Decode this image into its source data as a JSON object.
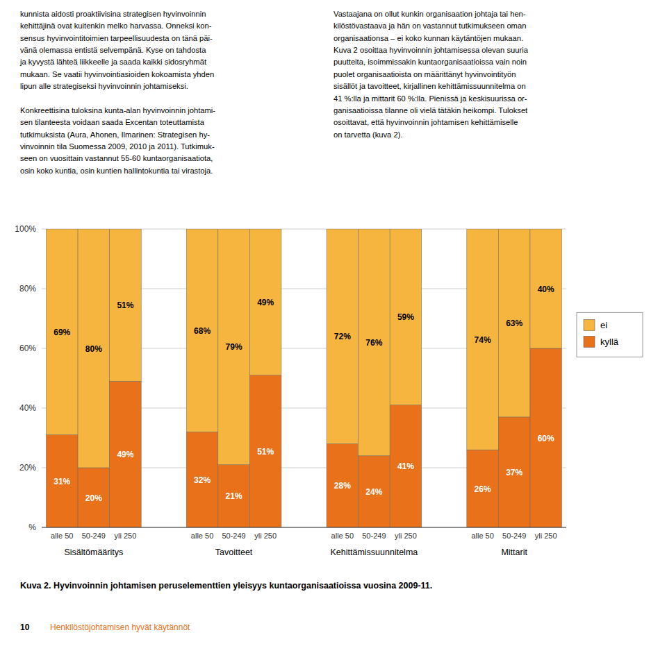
{
  "chart_data": {
    "type": "bar",
    "stacked": true,
    "data_labels": true,
    "grid": true,
    "legend": "right",
    "categories": [
      "alle 50",
      "50-249",
      "yli 250",
      "alle 50",
      "50-249",
      "yli 250",
      "alle 50",
      "50-249",
      "yli 250",
      "alle 50",
      "50-249",
      "yli 250"
    ],
    "groups": [
      "Sisältömääritys",
      "Tavoitteet",
      "Kehittämissuunnitelma",
      "Mittarit"
    ],
    "series": [
      {
        "name": "kyllä",
        "color": "#e8711a",
        "values": [
          31,
          20,
          49,
          32,
          21,
          51,
          28,
          24,
          41,
          26,
          37,
          60
        ],
        "value_labels": [
          "31%",
          "20%",
          "49%",
          "32%",
          "21%",
          "51%",
          "28%",
          "24%",
          "41%",
          "26%",
          "37%",
          "60%"
        ]
      },
      {
        "name": "ei",
        "color": "#f5b53f",
        "values": [
          69,
          80,
          51,
          68,
          79,
          49,
          72,
          76,
          59,
          74,
          63,
          40
        ],
        "value_labels": [
          "69%",
          "80%",
          "51%",
          "68%",
          "79%",
          "49%",
          "72%",
          "76%",
          "59%",
          "74%",
          "63%",
          "40%"
        ]
      }
    ],
    "ylim": [
      0,
      100
    ],
    "yticks": [
      {
        "value": 0,
        "label": "%"
      },
      {
        "value": 20,
        "label": "20%"
      },
      {
        "value": 40,
        "label": "40%"
      },
      {
        "value": 60,
        "label": "60%"
      },
      {
        "value": 80,
        "label": "80%"
      },
      {
        "value": 100,
        "label": "100%"
      }
    ]
  },
  "text_columns": [
    "kunnista aidosti proaktiivisina strategisen hyvinvoinnin\nkehittäjinä ovat kuitenkin melko harvassa. Onneksi kon-\nsensus hyvinvointitoimien tarpeellisuudesta on tänä päi-\nvänä olemassa entistä selvempänä. Kyse on tahdosta\nja kyvystä lähteä liikkeelle ja saada kaikki sidosryhmät\nmukaan. Se vaatii hyvinvointiasioiden kokoamista yhden\nlipun alle strategiseksi hyvinvoinnin johtamiseksi.\n\nKonkreettisina tuloksina kunta-alan hyvinvoinnin johtami-\nsen tilanteesta voidaan saada Excentan toteuttamista\ntutkimuksista (Aura, Ahonen, Ilmarinen: Strategisen hy-\nvinvoinnin tila Suomessa 2009, 2010 ja 2011). Tutkimuk-\nseen on vuosittain vastannut 55-60 kuntaorganisaatiota,\nosin koko kuntia, osin kuntien hallintokuntia tai virastoja.",
    "Vastaajana on ollut kunkin organisaation johtaja tai hen-\nkilöstövastaava ja hän on vastannut tutkimukseen oman\norganisaationsa – ei koko kunnan käytäntöjen mukaan.\nKuva 2 osoittaa hyvinvoinnin johtamisessa olevan suuria\npuutteita, isoimmissakin kuntaorganisaatioissa vain noin\npuolet organisaatioista on määrittänyt hyvinvointityön\nsisällöt ja tavoitteet, kirjallinen kehittämissuunnitelma on\n41 %:lla ja mittarit 60 %:lla. Pienissä ja keskisuurissa or-\nganisaatioissa tilanne oli vielä tätäkin heikompi. Tulokset\nosoittavat, että hyvinvoinnin johtamisen kehittämiselle\non tarvetta (kuva 2)."
  ],
  "caption": "Kuva 2. Hyvinvoinnin johtamisen peruselementtien yleisyys kuntaorganisaatioissa vuosina 2009-11.",
  "footer": {
    "number": "10",
    "text": "Henkilöstöjohtamisen hyvät käytännöt",
    "color": "#e8711a"
  }
}
